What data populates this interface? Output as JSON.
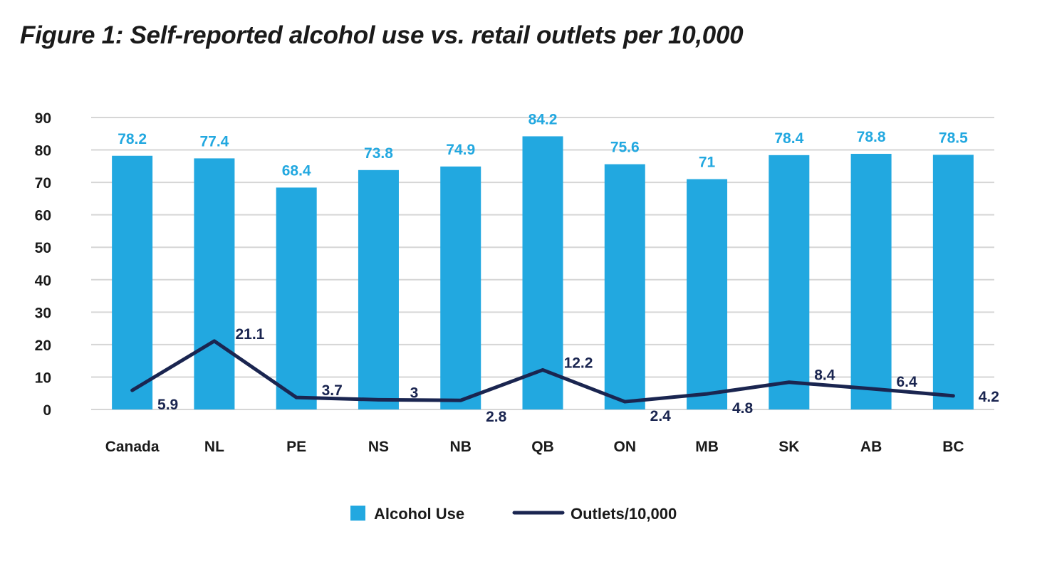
{
  "colors": {
    "bar": "#22a8e0",
    "line": "#1a2550",
    "grid": "#d6d6d6"
  },
  "chart_data": {
    "type": "bar",
    "title": "Figure 1: Self-reported alcohol use vs. retail outlets per 10,000",
    "xlabel": "",
    "ylabel": "",
    "ylim": [
      0,
      90
    ],
    "yticks": [
      0,
      10,
      20,
      30,
      40,
      50,
      60,
      70,
      80,
      90
    ],
    "grid": true,
    "legend_position": "bottom-center",
    "categories": [
      "Canada",
      "NL",
      "PE",
      "NS",
      "NB",
      "QB",
      "ON",
      "MB",
      "SK",
      "AB",
      "BC"
    ],
    "series": [
      {
        "name": "Alcohol Use",
        "type": "bar",
        "values": [
          78.2,
          77.4,
          68.4,
          73.8,
          74.9,
          84.2,
          75.6,
          71,
          78.4,
          78.8,
          78.5
        ]
      },
      {
        "name": "Outlets/10,000",
        "type": "line",
        "values": [
          5.9,
          21.1,
          3.7,
          3,
          2.8,
          12.2,
          2.4,
          4.8,
          8.4,
          6.4,
          4.2
        ]
      }
    ]
  }
}
